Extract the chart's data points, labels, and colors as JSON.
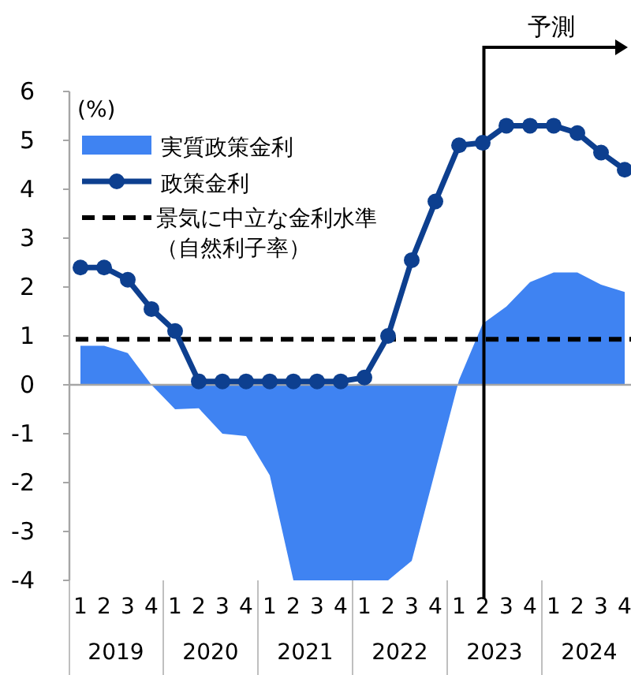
{
  "chart_data": {
    "type": "line",
    "ylabel": "(%)",
    "categories": [
      "1",
      "2",
      "3",
      "4",
      "1",
      "2",
      "3",
      "4",
      "1",
      "2",
      "3",
      "4",
      "1",
      "2",
      "3",
      "4",
      "1",
      "2",
      "3",
      "4",
      "1",
      "2",
      "3",
      "4"
    ],
    "series": [
      {
        "name": "実質政策金利",
        "type": "area",
        "color": "#3f83f2",
        "values": [
          0.8,
          0.8,
          0.65,
          0.0,
          -0.5,
          -0.48,
          -1.0,
          -1.05,
          -1.85,
          -4.0,
          -4.0,
          -4.0,
          -4.0,
          -4.0,
          -3.6,
          -1.75,
          0.1,
          1.25,
          1.6,
          2.1,
          2.3,
          2.3,
          2.05,
          1.9
        ]
      },
      {
        "name": "政策金利",
        "type": "line",
        "color": "#0d3f8f",
        "marker": "circle",
        "line_style": "solid",
        "values": [
          2.4,
          2.4,
          2.15,
          1.55,
          1.1,
          0.07,
          0.07,
          0.07,
          0.07,
          0.07,
          0.07,
          0.07,
          0.15,
          1.0,
          2.55,
          3.75,
          4.9,
          4.95,
          5.3,
          5.3,
          5.3,
          5.15,
          4.75,
          4.4
        ]
      }
    ],
    "ref_lines": [
      {
        "axis": "y",
        "value": 0.93,
        "label": "景気に中立な金利水準（自然利子率）",
        "color": "#000000",
        "line_style": "dashed"
      }
    ],
    "ylim": [
      -4,
      6
    ],
    "yticks": [
      -4,
      -3,
      -2,
      -1,
      0,
      1,
      2,
      3,
      4,
      5,
      6
    ],
    "annotations": [
      "2019",
      "2020",
      "2021",
      "2022",
      "2023",
      "2024",
      "予測"
    ],
    "legend": "top left"
  }
}
